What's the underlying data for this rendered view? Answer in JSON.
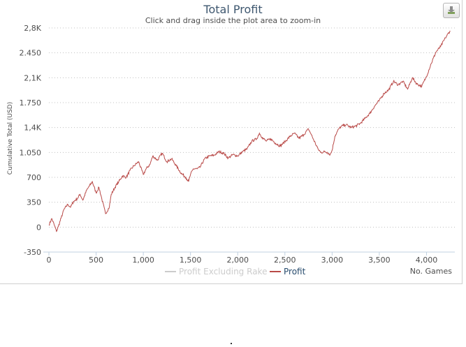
{
  "chart_data": {
    "type": "line",
    "title": "Total Profit",
    "subtitle": "Click and drag inside the plot area to zoom-in",
    "ylabel": "Cumulative Total (USD)",
    "xlabel": "No. Games",
    "xlim": [
      0,
      4300
    ],
    "ylim": [
      -350,
      2800
    ],
    "x_ticks": [
      0,
      500,
      1000,
      1500,
      2000,
      2500,
      3000,
      3500,
      4000
    ],
    "x_tick_labels": [
      "0",
      "500",
      "1,000",
      "1,500",
      "2,000",
      "2,500",
      "3,000",
      "3,500",
      "4,000"
    ],
    "y_ticks": [
      -350,
      0,
      350,
      700,
      1050,
      1400,
      1750,
      2100,
      2450,
      2800
    ],
    "y_tick_labels": [
      "-350",
      "0",
      "350",
      "700",
      "1.050",
      "1,4K",
      "1.750",
      "2,1K",
      "2.450",
      "2,8K"
    ],
    "grid": true,
    "legend_position": "bottom-center",
    "series": [
      {
        "name": "Profit Excluding Rake",
        "color": "#cccccc",
        "visible": false,
        "x": [],
        "y": []
      },
      {
        "name": "Profit",
        "color": "#b94a48",
        "visible": true,
        "x": [
          0,
          30,
          60,
          80,
          100,
          130,
          160,
          200,
          230,
          260,
          300,
          330,
          360,
          400,
          430,
          460,
          500,
          530,
          560,
          600,
          640,
          660,
          700,
          740,
          780,
          820,
          860,
          900,
          950,
          1000,
          1030,
          1070,
          1100,
          1150,
          1200,
          1250,
          1300,
          1350,
          1400,
          1450,
          1480,
          1500,
          1530,
          1570,
          1600,
          1650,
          1700,
          1750,
          1800,
          1850,
          1900,
          1950,
          2000,
          2050,
          2100,
          2150,
          2200,
          2230,
          2260,
          2300,
          2350,
          2400,
          2450,
          2500,
          2550,
          2600,
          2650,
          2700,
          2750,
          2780,
          2800,
          2850,
          2880,
          2920,
          2950,
          2980,
          3000,
          3030,
          3070,
          3100,
          3150,
          3200,
          3250,
          3300,
          3350,
          3400,
          3450,
          3500,
          3550,
          3600,
          3650,
          3700,
          3750,
          3800,
          3850,
          3900,
          3950,
          4000,
          4050,
          4100,
          4150,
          4200,
          4250
        ],
        "y": [
          30,
          120,
          20,
          -60,
          10,
          130,
          250,
          320,
          280,
          360,
          400,
          460,
          380,
          520,
          580,
          640,
          480,
          560,
          400,
          190,
          280,
          460,
          560,
          640,
          720,
          700,
          800,
          860,
          920,
          740,
          820,
          880,
          1000,
          940,
          1040,
          920,
          960,
          860,
          760,
          700,
          640,
          740,
          820,
          820,
          840,
          960,
          1000,
          1010,
          1060,
          1040,
          970,
          1020,
          1000,
          1060,
          1100,
          1210,
          1240,
          1320,
          1260,
          1210,
          1240,
          1180,
          1140,
          1200,
          1270,
          1320,
          1250,
          1300,
          1380,
          1300,
          1240,
          1100,
          1050,
          1060,
          1050,
          1020,
          1080,
          1280,
          1380,
          1420,
          1440,
          1400,
          1420,
          1460,
          1530,
          1600,
          1700,
          1780,
          1880,
          1930,
          2050,
          2000,
          2050,
          1940,
          2100,
          2010,
          1980,
          2120,
          2300,
          2460,
          2540,
          2660,
          2760
        ]
      }
    ]
  }
}
